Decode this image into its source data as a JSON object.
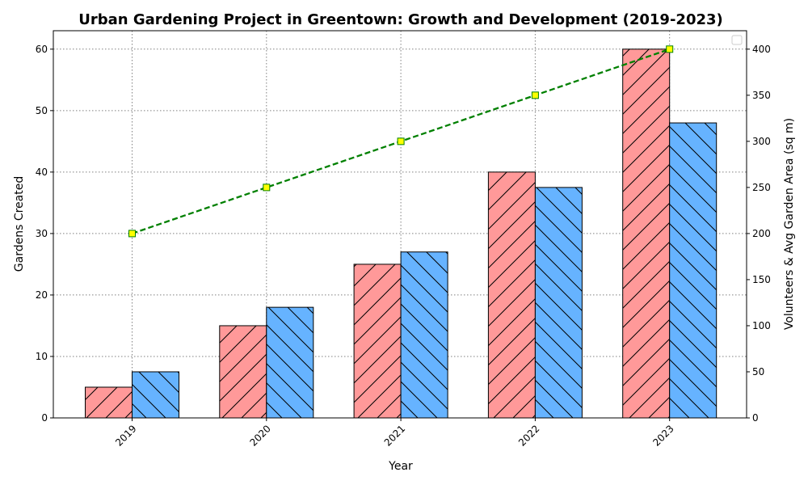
{
  "chart_data": {
    "type": "bar",
    "title": "Urban Gardening Project in Greentown: Growth and Development (2019-2023)",
    "xlabel": "Year",
    "ylabel": "Gardens Created",
    "y2label": "Volunteers & Avg Garden Area (sq m)",
    "categories": [
      "2019",
      "2020",
      "2021",
      "2022",
      "2023"
    ],
    "ylim": [
      0,
      63
    ],
    "y2lim": [
      0,
      420
    ],
    "yticks": [
      0,
      10,
      20,
      30,
      40,
      50,
      60
    ],
    "y2ticks": [
      0,
      50,
      100,
      150,
      200,
      250,
      300,
      350,
      400
    ],
    "grid": true,
    "legend": {
      "placement": "top-right",
      "entries": []
    },
    "series": [
      {
        "values": [
          5,
          15,
          25,
          40,
          60
        ],
        "axis": "left",
        "kind": "bar",
        "color": "#ff9999",
        "hatch": "/"
      },
      {
        "values": [
          50,
          120,
          180,
          250,
          320
        ],
        "axis": "right",
        "kind": "bar",
        "color": "#66b3ff",
        "hatch": "\\"
      },
      {
        "values": [
          200,
          250,
          300,
          350,
          400
        ],
        "axis": "right",
        "kind": "line",
        "color": "#008000",
        "marker": "square",
        "marker_color": "#ffff00"
      }
    ]
  }
}
